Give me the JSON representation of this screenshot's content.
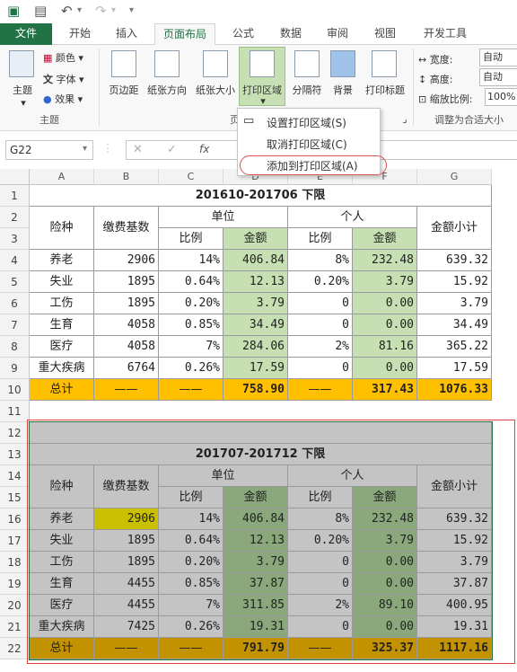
{
  "tabs": [
    "文件",
    "开始",
    "插入",
    "页面布局",
    "公式",
    "数据",
    "审阅",
    "视图",
    "开发工具"
  ],
  "ribbon": {
    "themes": "主题",
    "colors": "颜色",
    "fonts": "字体",
    "effects": "效果",
    "group_theme": "主题",
    "margins": "页边距",
    "orientation": "纸张方向",
    "size": "纸张大小",
    "print_area": "打印区域",
    "breaks": "分隔符",
    "background": "背景",
    "print_titles": "打印标题",
    "group_page": "页",
    "width_label": "宽度:",
    "width_val": "自动",
    "height_label": "高度:",
    "height_val": "自动",
    "scale_label": "缩放比例:",
    "scale_val": "100%",
    "group_fit": "调整为合适大小"
  },
  "dropdown": [
    "设置打印区域(S)",
    "取消打印区域(C)",
    "添加到打印区域(A)"
  ],
  "namebox": "G22",
  "fx": "fx",
  "cols": [
    "A",
    "B",
    "C",
    "D",
    "E",
    "F",
    "G"
  ],
  "rows": [
    "1",
    "2",
    "3",
    "4",
    "5",
    "6",
    "7",
    "8",
    "9",
    "10",
    "11",
    "12",
    "13",
    "14",
    "15",
    "16",
    "17",
    "18",
    "19",
    "20",
    "21",
    "22"
  ],
  "t1": {
    "title": "201610-201706  下限",
    "h_type": "险种",
    "h_base": "缴费基数",
    "h_unit": "单位",
    "h_person": "个人",
    "h_total": "金额小计",
    "h_ratio": "比例",
    "h_amount": "金额",
    "h_ratio2": "比例",
    "h_amount2": "金额",
    "rows": [
      [
        "养老",
        "2906",
        "14%",
        "406.84",
        "8%",
        "232.48",
        "639.32"
      ],
      [
        "失业",
        "1895",
        "0.64%",
        "12.13",
        "0.20%",
        "3.79",
        "15.92"
      ],
      [
        "工伤",
        "1895",
        "0.20%",
        "3.79",
        "0",
        "0.00",
        "3.79"
      ],
      [
        "生育",
        "4058",
        "0.85%",
        "34.49",
        "0",
        "0.00",
        "34.49"
      ],
      [
        "医疗",
        "4058",
        "7%",
        "284.06",
        "2%",
        "81.16",
        "365.22"
      ],
      [
        "重大疾病",
        "6764",
        "0.26%",
        "17.59",
        "0",
        "0.00",
        "17.59"
      ]
    ],
    "sum": [
      "总计",
      "——",
      "——",
      "758.90",
      "——",
      "317.43",
      "1076.33"
    ]
  },
  "t2": {
    "title": "201707-201712  下限",
    "h_type": "险种",
    "h_base": "缴费基数",
    "h_unit": "单位",
    "h_person": "个人",
    "h_total": "金额小计",
    "h_ratio": "比例",
    "h_amount": "金额",
    "h_ratio2": "比例",
    "h_amount2": "金额",
    "rows": [
      [
        "养老",
        "2906",
        "14%",
        "406.84",
        "8%",
        "232.48",
        "639.32"
      ],
      [
        "失业",
        "1895",
        "0.64%",
        "12.13",
        "0.20%",
        "3.79",
        "15.92"
      ],
      [
        "工伤",
        "1895",
        "0.20%",
        "3.79",
        "0",
        "0.00",
        "3.79"
      ],
      [
        "生育",
        "4455",
        "0.85%",
        "37.87",
        "0",
        "0.00",
        "37.87"
      ],
      [
        "医疗",
        "4455",
        "7%",
        "311.85",
        "2%",
        "89.10",
        "400.95"
      ],
      [
        "重大疾病",
        "7425",
        "0.26%",
        "19.31",
        "0",
        "0.00",
        "19.31"
      ]
    ],
    "sum": [
      "总计",
      "——",
      "——",
      "791.79",
      "——",
      "325.37",
      "1117.16"
    ]
  }
}
